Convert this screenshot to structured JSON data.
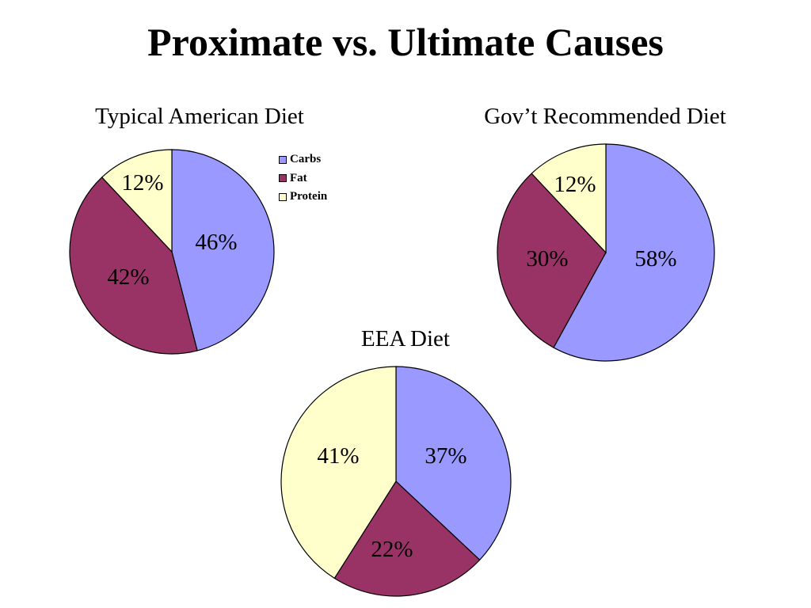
{
  "slide": {
    "title": "Proximate vs. Ultimate Causes"
  },
  "legend": [
    {
      "label": "Carbs",
      "color": "#9999FF"
    },
    {
      "label": "Fat",
      "color": "#993366"
    },
    {
      "label": "Protein",
      "color": "#FFFFCC"
    }
  ],
  "chart_data": [
    {
      "type": "pie",
      "title": "Typical American Diet",
      "categories": [
        "Carbs",
        "Fat",
        "Protein"
      ],
      "values": [
        46,
        42,
        12
      ],
      "labels": [
        "46%",
        "42%",
        "12%"
      ],
      "colors": [
        "#9999FF",
        "#993366",
        "#FFFFCC"
      ],
      "legend": "right"
    },
    {
      "type": "pie",
      "title": "Gov’t Recommended Diet",
      "categories": [
        "Carbs",
        "Fat",
        "Protein"
      ],
      "values": [
        58,
        30,
        12
      ],
      "labels": [
        "58%",
        "30%",
        "12%"
      ],
      "colors": [
        "#9999FF",
        "#993366",
        "#FFFFCC"
      ]
    },
    {
      "type": "pie",
      "title": "EEA Diet",
      "categories": [
        "Carbs",
        "Fat",
        "Protein"
      ],
      "values": [
        37,
        22,
        41
      ],
      "labels": [
        "37%",
        "22%",
        "41%"
      ],
      "colors": [
        "#9999FF",
        "#993366",
        "#FFFFCC"
      ]
    }
  ]
}
